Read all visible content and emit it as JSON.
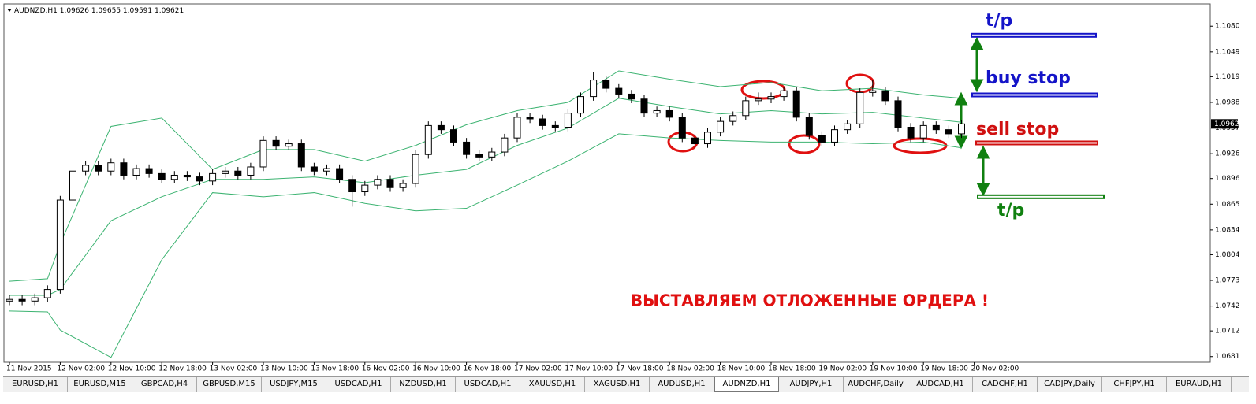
{
  "window": {
    "symbol": "AUDNZD,H1",
    "ohlc": [
      1.09626,
      1.09655,
      1.09591,
      1.09621
    ],
    "tabs": [
      "EURUSD,H1",
      "EURUSD,M15",
      "GBPCAD,H4",
      "GBPUSD,M15",
      "USDJPY,M15",
      "USDCAD,H1",
      "NZDUSD,H1",
      "USDCAD,H1",
      "XAUUSD,H1",
      "XAGUSD,H1",
      "AUDUSD,H1",
      "AUDNZD,H1",
      "AUDJPY,H1",
      "AUDCHF,Daily",
      "AUDCAD,H1",
      "CADCHF,H1",
      "CADJPY,Daily",
      "CHFJPY,H1",
      "EURAUD,H1"
    ],
    "active_tab": 11
  },
  "chart_data": {
    "type": "candlestick",
    "ylim": [
      1.0676,
      1.1104
    ],
    "yticks": [
      {
        "value": 1.108,
        "label": "1.1080"
      },
      1.1049,
      1.1019,
      1.0988,
      1.0957,
      1.0926,
      1.0896,
      1.0865,
      1.0834,
      1.0804,
      1.0773,
      1.0742,
      1.0712,
      1.0681
    ],
    "current_price": 1.0962,
    "x_labels": [
      "11 Nov 2015",
      "12 Nov 02:00",
      "12 Nov 10:00",
      "12 Nov 18:00",
      "13 Nov 02:00",
      "13 Nov 10:00",
      "13 Nov 18:00",
      "16 Nov 02:00",
      "16 Nov 10:00",
      "16 Nov 18:00",
      "17 Nov 02:00",
      "17 Nov 10:00",
      "17 Nov 18:00",
      "18 Nov 02:00",
      "18 Nov 10:00",
      "18 Nov 18:00",
      "19 Nov 02:00",
      "19 Nov 10:00",
      "19 Nov 18:00",
      "20 Nov 02:00"
    ],
    "bull_color": "#ffffff",
    "bear_color": "#000000",
    "open": [
      1.0748,
      1.075,
      1.0748,
      1.0752,
      1.0762,
      1.087,
      1.0905,
      1.0912,
      1.0905,
      1.0915,
      1.09,
      1.0908,
      1.0902,
      1.0895,
      1.09,
      1.0898,
      1.0893,
      1.0902,
      1.0905,
      1.09,
      1.091,
      1.0942,
      1.0935,
      1.0938,
      1.091,
      1.0905,
      1.0908,
      1.0895,
      1.088,
      1.0888,
      1.0895,
      1.0885,
      1.089,
      1.0925,
      1.096,
      1.0955,
      1.094,
      1.0925,
      1.0922,
      1.0928,
      1.0945,
      1.097,
      1.0968,
      1.096,
      1.0958,
      1.0975,
      1.0995,
      1.1015,
      1.1005,
      1.0998,
      1.0992,
      1.0975,
      1.0978,
      1.097,
      1.0945,
      1.0938,
      1.0952,
      1.0965,
      1.0972,
      1.099,
      1.0992,
      1.0995,
      1.1002,
      1.097,
      1.0948,
      1.094,
      1.0955,
      1.0962,
      1.1,
      1.1002,
      1.099,
      1.0958,
      1.0945,
      1.096,
      1.0955,
      1.095
    ],
    "high": [
      1.0755,
      1.0755,
      1.0757,
      1.0767,
      1.0875,
      1.091,
      1.0917,
      1.0917,
      1.092,
      1.092,
      1.0913,
      1.0913,
      1.0907,
      1.0905,
      1.0905,
      1.0903,
      1.0907,
      1.091,
      1.091,
      1.0915,
      1.0947,
      1.0947,
      1.0943,
      1.0943,
      1.0915,
      1.0913,
      1.0913,
      1.09,
      1.0893,
      1.09,
      1.09,
      1.0895,
      1.093,
      1.0965,
      1.0965,
      1.096,
      1.0945,
      1.093,
      1.0933,
      1.095,
      1.0975,
      1.0975,
      1.0973,
      1.0965,
      1.098,
      1.1,
      1.1025,
      1.102,
      1.101,
      1.1003,
      1.0997,
      1.0983,
      1.0983,
      1.0975,
      1.095,
      1.0957,
      1.097,
      1.0977,
      1.0995,
      1.1,
      1.1,
      1.1007,
      1.1007,
      1.0975,
      1.0953,
      1.096,
      1.0967,
      1.1005,
      1.1015,
      1.1007,
      1.0995,
      1.0963,
      1.0965,
      1.0965,
      1.096,
      1.0967
    ],
    "low": [
      1.0743,
      1.0743,
      1.0743,
      1.0747,
      1.0757,
      1.0865,
      1.09,
      1.09,
      1.09,
      1.0895,
      1.0895,
      1.0897,
      1.089,
      1.089,
      1.0893,
      1.0888,
      1.0888,
      1.0897,
      1.0895,
      1.0895,
      1.0905,
      1.093,
      1.093,
      1.0905,
      1.09,
      1.09,
      1.089,
      1.0862,
      1.0875,
      1.0883,
      1.088,
      1.088,
      1.0885,
      1.092,
      1.095,
      1.0935,
      1.092,
      1.0917,
      1.0917,
      1.0923,
      1.094,
      1.0963,
      1.0955,
      1.0953,
      1.0953,
      1.097,
      1.099,
      1.1,
      1.0993,
      1.0987,
      1.097,
      1.097,
      1.0965,
      1.094,
      1.093,
      1.0933,
      1.0947,
      1.096,
      1.0967,
      1.0985,
      1.0987,
      1.099,
      1.0965,
      1.0943,
      1.0935,
      1.0935,
      1.095,
      1.0957,
      1.0995,
      1.0985,
      1.0953,
      1.094,
      1.094,
      1.095,
      1.0945,
      1.0945
    ],
    "close": [
      1.075,
      1.0748,
      1.0752,
      1.0762,
      1.087,
      1.0905,
      1.0912,
      1.0905,
      1.0915,
      1.09,
      1.0908,
      1.0902,
      1.0895,
      1.09,
      1.0898,
      1.0893,
      1.0902,
      1.0905,
      1.09,
      1.091,
      1.0942,
      1.0935,
      1.0938,
      1.091,
      1.0905,
      1.0908,
      1.0895,
      1.088,
      1.0888,
      1.0895,
      1.0885,
      1.089,
      1.0925,
      1.096,
      1.0955,
      1.094,
      1.0925,
      1.0922,
      1.0928,
      1.0945,
      1.097,
      1.0968,
      1.096,
      1.0958,
      1.0975,
      1.0995,
      1.1015,
      1.1005,
      1.0998,
      1.0992,
      1.0975,
      1.0978,
      1.097,
      1.0945,
      1.0938,
      1.0952,
      1.0965,
      1.0972,
      1.099,
      1.0992,
      1.0995,
      1.1002,
      1.097,
      1.0948,
      1.094,
      1.0955,
      1.0962,
      1.1,
      1.1002,
      1.099,
      1.0958,
      1.0945,
      1.096,
      1.0955,
      1.095,
      1.0962
    ],
    "bands": {
      "color": "#3cb371",
      "x": [
        0,
        3,
        4,
        8,
        12,
        16,
        20,
        24,
        28,
        32,
        36,
        40,
        44,
        48,
        52,
        56,
        60,
        64,
        68,
        72,
        75
      ],
      "upper": [
        1.0772,
        1.0775,
        1.0817,
        1.0959,
        1.0969,
        1.0907,
        1.0931,
        1.0931,
        1.0917,
        1.0936,
        1.0961,
        1.0978,
        1.0988,
        1.1026,
        1.1016,
        1.1007,
        1.1012,
        1.1002,
        1.1005,
        1.0997,
        1.0993
      ],
      "middle": [
        1.0755,
        1.0755,
        1.0762,
        1.0845,
        1.0874,
        1.0895,
        1.0895,
        1.0898,
        1.0891,
        1.09,
        1.0907,
        1.0936,
        1.0957,
        1.0993,
        1.0983,
        1.0974,
        1.0978,
        1.0974,
        1.0976,
        1.0969,
        1.0964
      ],
      "lower": [
        1.0736,
        1.0735,
        1.0713,
        1.068,
        1.0798,
        1.0879,
        1.0874,
        1.0879,
        1.0866,
        1.0857,
        1.086,
        1.0888,
        1.0917,
        1.095,
        1.0945,
        1.0942,
        1.094,
        1.094,
        1.0938,
        1.094,
        1.0933
      ]
    },
    "levels": [
      {
        "label": "t/p",
        "value": 1.1069,
        "color": "#1414c8"
      },
      {
        "label": "buy stop",
        "value": 1.0997,
        "color": "#1414c8"
      },
      {
        "label": "sell stop",
        "value": 1.0939,
        "color": "#d01010"
      },
      {
        "label": "t/p",
        "value": 1.0874,
        "color": "#108010"
      }
    ],
    "annotation": "ВЫСТАВЛЯЕМ ОТЛОЖЕННЫЕ ОРДЕРА !"
  }
}
